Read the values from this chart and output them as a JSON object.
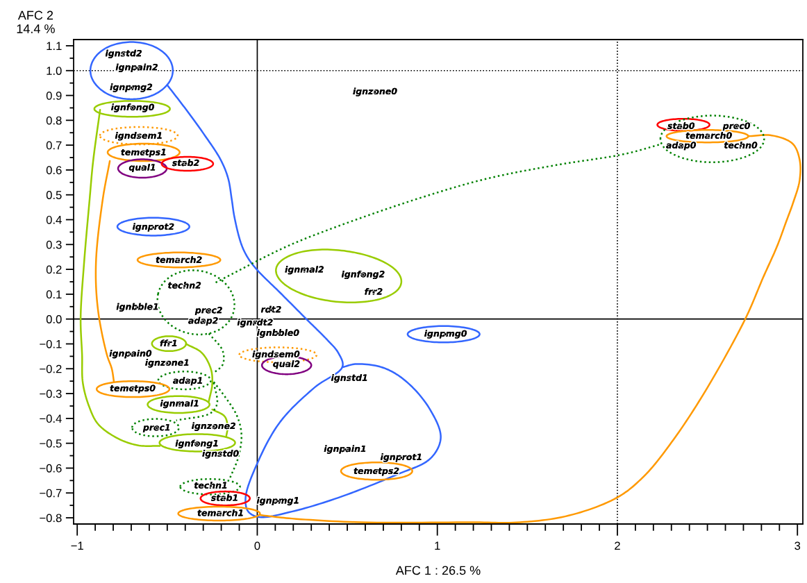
{
  "chart_data": {
    "type": "line",
    "xlabel": "AFC 1 : 26.5 %",
    "ylabel": "AFC 2\n14.4 %",
    "xlim": [
      -1.02,
      3.03
    ],
    "ylim": [
      -0.825,
      1.125
    ],
    "xticks": [
      {
        "value": -1,
        "label": "−1"
      },
      {
        "value": -0.9,
        "label": null
      },
      {
        "value": -0.8,
        "label": null
      },
      {
        "value": -0.7,
        "label": null
      },
      {
        "value": -0.6,
        "label": null
      },
      {
        "value": -0.5,
        "label": null
      },
      {
        "value": -0.4,
        "label": null
      },
      {
        "value": -0.3,
        "label": null
      },
      {
        "value": -0.2,
        "label": null
      },
      {
        "value": -0.1,
        "label": null
      },
      {
        "value": 0,
        "label": "0"
      },
      {
        "value": 0.1,
        "label": null
      },
      {
        "value": 0.2,
        "label": null
      },
      {
        "value": 0.3,
        "label": null
      },
      {
        "value": 0.4,
        "label": null
      },
      {
        "value": 0.5,
        "label": null
      },
      {
        "value": 0.6,
        "label": null
      },
      {
        "value": 0.7,
        "label": null
      },
      {
        "value": 0.8,
        "label": null
      },
      {
        "value": 0.9,
        "label": null
      },
      {
        "value": 1,
        "label": "1"
      },
      {
        "value": 1.1,
        "label": null
      },
      {
        "value": 1.2,
        "label": null
      },
      {
        "value": 1.3,
        "label": null
      },
      {
        "value": 1.4,
        "label": null
      },
      {
        "value": 1.5,
        "label": null
      },
      {
        "value": 1.6,
        "label": null
      },
      {
        "value": 1.7,
        "label": null
      },
      {
        "value": 1.8,
        "label": null
      },
      {
        "value": 1.9,
        "label": null
      },
      {
        "value": 2,
        "label": "2"
      },
      {
        "value": 2.1,
        "label": null
      },
      {
        "value": 2.2,
        "label": null
      },
      {
        "value": 2.3,
        "label": null
      },
      {
        "value": 2.4,
        "label": null
      },
      {
        "value": 2.5,
        "label": null
      },
      {
        "value": 2.6,
        "label": null
      },
      {
        "value": 2.7,
        "label": null
      },
      {
        "value": 2.8,
        "label": null
      },
      {
        "value": 2.9,
        "label": null
      },
      {
        "value": 3,
        "label": "3"
      }
    ],
    "yticks": [
      {
        "value": -0.8,
        "label": "−0.8"
      },
      {
        "value": -0.75,
        "label": null
      },
      {
        "value": -0.7,
        "label": "−0.7"
      },
      {
        "value": -0.65,
        "label": null
      },
      {
        "value": -0.6,
        "label": "−0.6"
      },
      {
        "value": -0.55,
        "label": null
      },
      {
        "value": -0.5,
        "label": "−0.5"
      },
      {
        "value": -0.45,
        "label": null
      },
      {
        "value": -0.4,
        "label": "−0.4"
      },
      {
        "value": -0.35,
        "label": null
      },
      {
        "value": -0.3,
        "label": "−0.3"
      },
      {
        "value": -0.25,
        "label": null
      },
      {
        "value": -0.2,
        "label": "−0.2"
      },
      {
        "value": -0.15,
        "label": null
      },
      {
        "value": -0.1,
        "label": "−0.1"
      },
      {
        "value": -0.05,
        "label": null
      },
      {
        "value": 0,
        "label": "0.0"
      },
      {
        "value": 0.05,
        "label": null
      },
      {
        "value": 0.1,
        "label": "0.1"
      },
      {
        "value": 0.15,
        "label": null
      },
      {
        "value": 0.2,
        "label": "0.2"
      },
      {
        "value": 0.25,
        "label": null
      },
      {
        "value": 0.3,
        "label": "0.3"
      },
      {
        "value": 0.35,
        "label": null
      },
      {
        "value": 0.4,
        "label": "0.4"
      },
      {
        "value": 0.45,
        "label": null
      },
      {
        "value": 0.5,
        "label": "0.5"
      },
      {
        "value": 0.55,
        "label": null
      },
      {
        "value": 0.6,
        "label": "0.6"
      },
      {
        "value": 0.65,
        "label": null
      },
      {
        "value": 0.7,
        "label": "0.7"
      },
      {
        "value": 0.75,
        "label": null
      },
      {
        "value": 0.8,
        "label": "0.8"
      },
      {
        "value": 0.85,
        "label": null
      },
      {
        "value": 0.9,
        "label": "0.9"
      },
      {
        "value": 0.95,
        "label": null
      },
      {
        "value": 1.0,
        "label": "1.0"
      },
      {
        "value": 1.05,
        "label": null
      },
      {
        "value": 1.1,
        "label": "1.1"
      }
    ],
    "ref_lines": [
      {
        "axis": "x",
        "value": 0,
        "color": "#000000",
        "line_style": "solid"
      },
      {
        "axis": "y",
        "value": 0,
        "color": "#000000",
        "line_style": "solid"
      },
      {
        "axis": "x",
        "value": 2,
        "color": "#000000",
        "line_style": "dotted"
      },
      {
        "axis": "y",
        "value": 1,
        "color": "#000000",
        "line_style": "dotted"
      }
    ],
    "series": [
      {
        "color": "#3366ff",
        "line_style": "solid",
        "x": [
          -0.5,
          -0.396,
          -0.296,
          -0.204,
          -0.162,
          -0.142,
          -0.127,
          -0.088,
          -0.05,
          0.0,
          0.127,
          0.281,
          0.385,
          0.45,
          0.473,
          0.319,
          0.127,
          0.0,
          -0.065,
          -0.05,
          0.012,
          0.192,
          0.45,
          0.769,
          0.962,
          1.019,
          0.962,
          0.835,
          0.704,
          0.55,
          0.473
        ],
        "values": [
          0.942,
          0.844,
          0.744,
          0.642,
          0.567,
          0.483,
          0.411,
          0.3,
          0.244,
          0.197,
          0.106,
          -0.006,
          -0.081,
          -0.136,
          -0.192,
          -0.275,
          -0.414,
          -0.581,
          -0.719,
          -0.775,
          -0.797,
          -0.775,
          -0.719,
          -0.628,
          -0.561,
          -0.478,
          -0.367,
          -0.256,
          -0.197,
          -0.181,
          -0.194
        ]
      },
      {
        "color": "#ff9900",
        "line_style": "solid",
        "x": [
          2.727,
          2.858,
          2.973,
          3.012,
          3.012,
          2.975,
          2.937,
          2.887,
          2.81,
          2.71,
          2.48,
          2.3,
          2.15,
          2.0,
          1.73,
          1.46,
          1.19,
          0.577,
          0.192,
          0.015
        ],
        "values": [
          0.736,
          0.739,
          0.706,
          0.642,
          0.558,
          0.466,
          0.391,
          0.293,
          0.168,
          0.0,
          -0.3,
          -0.497,
          -0.631,
          -0.718,
          -0.791,
          -0.818,
          -0.818,
          -0.818,
          -0.803,
          -0.789
        ]
      },
      {
        "color": "#99cc00",
        "line_style": "solid",
        "x": [
          -0.873,
          -0.912,
          -0.931,
          -0.962,
          -0.981,
          -0.973,
          -0.969,
          -0.935,
          -0.885,
          -0.781,
          -0.665,
          -0.542
        ],
        "values": [
          0.842,
          0.633,
          0.483,
          0.225,
          0.003,
          -0.144,
          -0.256,
          -0.35,
          -0.422,
          -0.478,
          -0.508,
          -0.511
        ]
      },
      {
        "color": "#99cc00",
        "line_style": "solid",
        "x": [
          -0.396,
          -0.308,
          -0.258,
          -0.25,
          -0.269
        ],
        "values": [
          -0.1,
          -0.136,
          -0.2,
          -0.261,
          -0.331
        ]
      },
      {
        "color": "#99cc00",
        "line_style": "solid",
        "x": [
          -0.25,
          -0.181,
          -0.165,
          -0.173
        ],
        "values": [
          -0.364,
          -0.392,
          -0.433,
          -0.475
        ]
      },
      {
        "color": "#ff9900",
        "line_style": "solid",
        "x": [
          -0.819,
          -0.858,
          -0.896,
          -0.885,
          -0.835,
          -0.808,
          -0.796
        ],
        "values": [
          0.636,
          0.483,
          0.225,
          0.039,
          -0.144,
          -0.2,
          -0.253
        ]
      },
      {
        "color": "#008000",
        "line_style": "dotted",
        "x": [
          -0.231,
          0.154,
          0.412,
          0.885,
          1.269,
          1.654,
          2.038,
          2.238
        ],
        "values": [
          0.147,
          0.289,
          0.364,
          0.483,
          0.564,
          0.619,
          0.664,
          0.703
        ]
      },
      {
        "color": "#008000",
        "line_style": "dotted",
        "x": [
          -0.269,
          -0.192,
          -0.192,
          -0.242
        ],
        "values": [
          -0.058,
          -0.128,
          -0.183,
          -0.217
        ]
      },
      {
        "color": "#008000",
        "line_style": "dotted",
        "x": [
          -0.242,
          -0.181,
          -0.115,
          -0.088,
          -0.104,
          -0.154
        ],
        "values": [
          -0.253,
          -0.311,
          -0.386,
          -0.461,
          -0.553,
          -0.644
        ]
      },
      {
        "color": "#008000",
        "line_style": "dotted",
        "x": [
          -0.242,
          -0.223,
          -0.258,
          -0.45
        ],
        "values": [
          -0.256,
          -0.339,
          -0.378,
          -0.408
        ]
      },
      {
        "color": "#3366ff",
        "line_style": "solid",
        "x": [
          -0.927,
          -0.896,
          -0.813,
          -0.698,
          -0.584,
          -0.5,
          -0.469,
          -0.5,
          -0.584,
          -0.698,
          -0.813,
          -0.896,
          -0.927
        ],
        "values": [
          1.0,
          1.058,
          1.1,
          1.115,
          1.1,
          1.058,
          1.0,
          0.943,
          0.9,
          0.885,
          0.9,
          0.943,
          1.0
        ]
      },
      {
        "color": "#99cc00",
        "line_style": "solid",
        "x": [
          -0.905,
          -0.843,
          -0.695,
          -0.547,
          -0.485,
          -0.547,
          -0.695,
          -0.843,
          -0.905
        ],
        "values": [
          0.846,
          0.869,
          0.878,
          0.869,
          0.846,
          0.823,
          0.814,
          0.823,
          0.846
        ]
      },
      {
        "color": "#ff9900",
        "line_style": "dotted",
        "x": [
          -0.874,
          -0.811,
          -0.658,
          -0.505,
          -0.442,
          -0.505,
          -0.658,
          -0.811,
          -0.874
        ],
        "values": [
          0.738,
          0.763,
          0.773,
          0.763,
          0.738,
          0.713,
          0.703,
          0.713,
          0.738
        ]
      },
      {
        "color": "#ff9900",
        "line_style": "solid",
        "x": [
          -0.831,
          -0.772,
          -0.631,
          -0.49,
          -0.431,
          -0.49,
          -0.631,
          -0.772,
          -0.831
        ],
        "values": [
          0.671,
          0.696,
          0.706,
          0.696,
          0.671,
          0.646,
          0.636,
          0.646,
          0.671
        ]
      },
      {
        "color": "#800080",
        "line_style": "solid",
        "x": [
          -0.773,
          -0.733,
          -0.638,
          -0.543,
          -0.503,
          -0.543,
          -0.638,
          -0.733,
          -0.773
        ],
        "values": [
          0.606,
          0.632,
          0.643,
          0.632,
          0.606,
          0.58,
          0.569,
          0.58,
          0.606
        ]
      },
      {
        "color": "#ff0000",
        "line_style": "solid",
        "x": [
          -0.531,
          -0.489,
          -0.388,
          -0.287,
          -0.245,
          -0.287,
          -0.388,
          -0.489,
          -0.531
        ],
        "values": [
          0.625,
          0.645,
          0.653,
          0.645,
          0.625,
          0.605,
          0.597,
          0.605,
          0.625
        ]
      },
      {
        "color": "#3366ff",
        "line_style": "solid",
        "x": [
          -0.777,
          -0.718,
          -0.577,
          -0.436,
          -0.377,
          -0.436,
          -0.577,
          -0.718,
          -0.777
        ],
        "values": [
          0.372,
          0.397,
          0.408,
          0.397,
          0.372,
          0.347,
          0.336,
          0.347,
          0.372
        ]
      },
      {
        "color": "#ff9900",
        "line_style": "solid",
        "x": [
          -0.665,
          -0.598,
          -0.435,
          -0.272,
          -0.205,
          -0.272,
          -0.435,
          -0.598,
          -0.665
        ],
        "values": [
          0.238,
          0.259,
          0.268,
          0.259,
          0.238,
          0.217,
          0.208,
          0.217,
          0.238
        ]
      },
      {
        "color": "#008000",
        "line_style": "dotted",
        "x": [
          -0.551,
          -0.504,
          -0.413,
          -0.302,
          -0.202,
          -0.139,
          -0.13,
          -0.177,
          -0.268,
          -0.378,
          -0.479,
          -0.542,
          -0.551
        ],
        "values": [
          0.101,
          0.159,
          0.192,
          0.192,
          0.159,
          0.101,
          0.034,
          -0.025,
          -0.058,
          -0.058,
          -0.025,
          0.033,
          0.101
        ]
      },
      {
        "color": "#99cc00",
        "line_style": "solid",
        "x": [
          -0.585,
          -0.557,
          -0.49,
          -0.423,
          -0.395,
          -0.423,
          -0.49,
          -0.557,
          -0.585
        ],
        "values": [
          -0.099,
          -0.078,
          -0.069,
          -0.078,
          -0.099,
          -0.12,
          -0.129,
          -0.12,
          -0.099
        ]
      },
      {
        "color": "#008000",
        "line_style": "dotted",
        "x": [
          -0.55,
          -0.507,
          -0.404,
          -0.301,
          -0.258,
          -0.301,
          -0.404,
          -0.507,
          -0.55
        ],
        "values": [
          -0.247,
          -0.222,
          -0.211,
          -0.222,
          -0.247,
          -0.272,
          -0.283,
          -0.272,
          -0.247
        ]
      },
      {
        "color": "#ff9900",
        "line_style": "solid",
        "x": [
          -0.892,
          -0.833,
          -0.69,
          -0.547,
          -0.488,
          -0.547,
          -0.69,
          -0.833,
          -0.892
        ],
        "values": [
          -0.282,
          -0.259,
          -0.25,
          -0.259,
          -0.282,
          -0.305,
          -0.314,
          -0.305,
          -0.282
        ]
      },
      {
        "color": "#99cc00",
        "line_style": "solid",
        "x": [
          -0.609,
          -0.559,
          -0.437,
          -0.315,
          -0.265,
          -0.315,
          -0.437,
          -0.559,
          -0.609
        ],
        "values": [
          -0.344,
          -0.32,
          -0.31,
          -0.32,
          -0.344,
          -0.368,
          -0.378,
          -0.368,
          -0.344
        ]
      },
      {
        "color": "#008000",
        "line_style": "dotted",
        "x": [
          -0.695,
          -0.657,
          -0.565,
          -0.473,
          -0.435,
          -0.473,
          -0.565,
          -0.657,
          -0.695
        ],
        "values": [
          -0.437,
          -0.412,
          -0.402,
          -0.412,
          -0.437,
          -0.462,
          -0.472,
          -0.462,
          -0.437
        ]
      },
      {
        "color": "#99cc00",
        "line_style": "solid",
        "x": [
          -0.543,
          -0.481,
          -0.333,
          -0.185,
          -0.123,
          -0.185,
          -0.333,
          -0.481,
          -0.543
        ],
        "values": [
          -0.498,
          -0.473,
          -0.463,
          -0.473,
          -0.498,
          -0.523,
          -0.533,
          -0.523,
          -0.498
        ]
      },
      {
        "color": "#008000",
        "line_style": "dotted",
        "x": [
          -0.428,
          -0.379,
          -0.262,
          -0.145,
          -0.096,
          -0.145,
          -0.262,
          -0.379,
          -0.428
        ],
        "values": [
          -0.675,
          -0.653,
          -0.644,
          -0.653,
          -0.675,
          -0.697,
          -0.706,
          -0.697,
          -0.675
        ]
      },
      {
        "color": "#ff0000",
        "line_style": "solid",
        "x": [
          -0.315,
          -0.275,
          -0.178,
          -0.081,
          -0.041,
          -0.081,
          -0.178,
          -0.275,
          -0.315
        ],
        "values": [
          -0.722,
          -0.702,
          -0.694,
          -0.702,
          -0.722,
          -0.742,
          -0.75,
          -0.742,
          -0.722
        ]
      },
      {
        "color": "#ff9900",
        "line_style": "solid",
        "x": [
          -0.439,
          -0.372,
          -0.212,
          -0.052,
          0.015,
          -0.052,
          -0.212,
          -0.372,
          -0.439
        ],
        "values": [
          -0.783,
          -0.763,
          -0.755,
          -0.763,
          -0.783,
          -0.803,
          -0.811,
          -0.803,
          -0.783
        ]
      },
      {
        "color": "#99cc00",
        "line_style": "solid",
        "x": [
          0.104,
          0.158,
          0.29,
          0.467,
          0.639,
          0.761,
          0.8,
          0.746,
          0.613,
          0.437,
          0.265,
          0.143,
          0.104
        ],
        "values": [
          0.2,
          0.247,
          0.276,
          0.276,
          0.249,
          0.202,
          0.147,
          0.099,
          0.071,
          0.07,
          0.097,
          0.145,
          0.2
        ]
      },
      {
        "color": "#3366ff",
        "line_style": "solid",
        "x": [
          0.835,
          0.894,
          1.035,
          1.176,
          1.235,
          1.176,
          1.035,
          0.894,
          0.835
        ],
        "values": [
          -0.061,
          -0.038,
          -0.028,
          -0.038,
          -0.061,
          -0.084,
          -0.094,
          -0.084,
          -0.061
        ]
      },
      {
        "color": "#ff9900",
        "line_style": "dotted",
        "x": [
          -0.1,
          -0.037,
          0.115,
          0.267,
          0.33,
          0.267,
          0.115,
          -0.037,
          -0.1
        ],
        "values": [
          -0.144,
          -0.123,
          -0.114,
          -0.123,
          -0.144,
          -0.165,
          -0.174,
          -0.165,
          -0.144
        ]
      },
      {
        "color": "#800080",
        "line_style": "solid",
        "x": [
          0.026,
          0.066,
          0.163,
          0.26,
          0.3,
          0.26,
          0.163,
          0.066,
          0.026
        ],
        "values": [
          -0.186,
          -0.161,
          -0.15,
          -0.161,
          -0.186,
          -0.211,
          -0.222,
          -0.211,
          -0.186
        ]
      },
      {
        "color": "#ff9900",
        "line_style": "solid",
        "x": [
          0.465,
          0.523,
          0.663,
          0.803,
          0.861,
          0.803,
          0.663,
          0.523,
          0.465
        ],
        "values": [
          -0.612,
          -0.587,
          -0.577,
          -0.587,
          -0.612,
          -0.637,
          -0.647,
          -0.637,
          -0.612
        ]
      },
      {
        "color": "#ff0000",
        "line_style": "solid",
        "x": [
          2.222,
          2.264,
          2.367,
          2.47,
          2.512,
          2.47,
          2.367,
          2.264,
          2.222
        ],
        "values": [
          0.782,
          0.799,
          0.806,
          0.799,
          0.782,
          0.765,
          0.758,
          0.765,
          0.782
        ]
      },
      {
        "color": "#ff9900",
        "line_style": "solid",
        "x": [
          2.273,
          2.34,
          2.5,
          2.66,
          2.727,
          2.66,
          2.5,
          2.34,
          2.273
        ],
        "values": [
          0.736,
          0.754,
          0.761,
          0.754,
          0.736,
          0.718,
          0.711,
          0.718,
          0.736
        ]
      },
      {
        "color": "#008000",
        "line_style": "dotted",
        "x": [
          2.239,
          2.278,
          2.383,
          2.527,
          2.671,
          2.776,
          2.815,
          2.776,
          2.671,
          2.527,
          2.383,
          2.278,
          2.239
        ],
        "values": [
          0.725,
          0.772,
          0.806,
          0.819,
          0.806,
          0.772,
          0.725,
          0.678,
          0.644,
          0.631,
          0.644,
          0.678,
          0.725
        ]
      },
      {
        "type": "scatter",
        "marker": "circle",
        "color": "#000000",
        "x": [
          -0.742,
          -0.669,
          -0.7,
          -0.692,
          0.654,
          -0.658,
          -0.631,
          -0.638,
          -0.397,
          -0.577,
          -0.435,
          -0.404,
          -0.665,
          -0.269,
          -0.3,
          0.077,
          -0.012,
          0.115,
          0.262,
          0.588,
          0.646,
          1.046,
          0.104,
          0.162,
          0.512,
          -0.492,
          -0.704,
          -0.5,
          -0.385,
          -0.692,
          -0.431,
          -0.558,
          -0.242,
          -0.335,
          -0.204,
          -0.258,
          -0.181,
          0.115,
          -0.204,
          0.488,
          0.8,
          0.662,
          2.354,
          2.662,
          2.508,
          2.354,
          2.685
        ],
        "values": [
          1.067,
          1.011,
          0.931,
          0.85,
          0.914,
          0.736,
          0.669,
          0.608,
          0.626,
          0.369,
          0.236,
          0.133,
          0.047,
          0.033,
          -0.009,
          0.036,
          -0.016,
          -0.058,
          0.197,
          0.178,
          0.108,
          -0.061,
          -0.144,
          -0.183,
          -0.239,
          -0.1,
          -0.141,
          -0.178,
          -0.25,
          -0.281,
          -0.342,
          -0.439,
          -0.433,
          -0.503,
          -0.544,
          -0.672,
          -0.722,
          -0.733,
          -0.783,
          -0.525,
          -0.558,
          -0.614,
          0.775,
          0.775,
          0.736,
          0.697,
          0.697
        ],
        "value_labels": [
          "ignstd2",
          "ignpain2",
          "ignpmg2",
          "ignfong0",
          "ignzone0",
          "igndsem1",
          "temctps1",
          "qual1",
          "stab2",
          "ignprot2",
          "temarch2",
          "techn2",
          "ignbble1",
          "prec2",
          "adap2",
          "rdt2",
          "ignrdt2",
          "ignbble0",
          "ignmal2",
          "ignfong2",
          "frr2",
          "ignpmg0",
          "igndsem0",
          "qual2",
          "ignstd1",
          "ffr1",
          "ignpain0",
          "ignzone1",
          "adap1",
          "temctps0",
          "ignmal1",
          "prec1",
          "ignzone2",
          "ignfong1",
          "ignstd0",
          "techn1",
          "stab1",
          "ignpmg1",
          "temarch1",
          "ignpain1",
          "ignprot1",
          "temctps2",
          "stab0",
          "prec0",
          "temarch0",
          "adap0",
          "techn0"
        ]
      }
    ]
  }
}
